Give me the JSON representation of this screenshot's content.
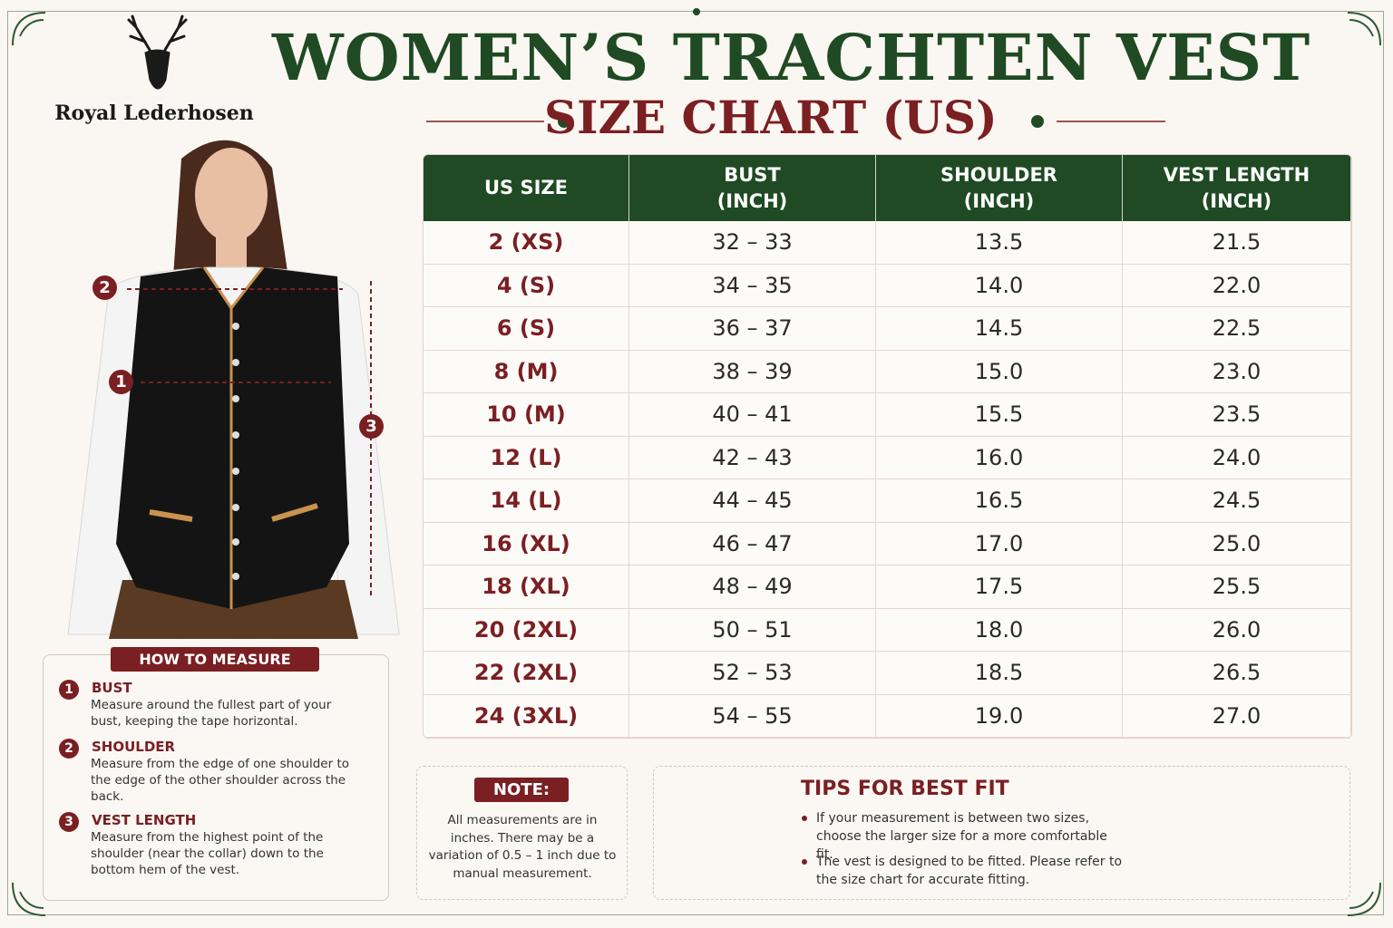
{
  "brand": "Royal Lederhosen",
  "header": {
    "title": "WOMEN’S TRACHTEN VEST",
    "subtitle": "SIZE CHART (US)"
  },
  "table": {
    "columns": [
      [
        "US SIZE"
      ],
      [
        "BUST",
        "(INCH)"
      ],
      [
        "SHOULDER",
        "(INCH)"
      ],
      [
        "VEST LENGTH",
        "(INCH)"
      ]
    ],
    "rows": [
      [
        "2 (XS)",
        "32 – 33",
        "13.5",
        "21.5"
      ],
      [
        "4 (S)",
        "34 – 35",
        "14.0",
        "22.0"
      ],
      [
        "6 (S)",
        "36 – 37",
        "14.5",
        "22.5"
      ],
      [
        "8 (M)",
        "38 – 39",
        "15.0",
        "23.0"
      ],
      [
        "10 (M)",
        "40 – 41",
        "15.5",
        "23.5"
      ],
      [
        "12 (L)",
        "42 – 43",
        "16.0",
        "24.0"
      ],
      [
        "14 (L)",
        "44 – 45",
        "16.5",
        "24.5"
      ],
      [
        "16 (XL)",
        "46 – 47",
        "17.0",
        "25.0"
      ],
      [
        "18 (XL)",
        "48 – 49",
        "17.5",
        "25.5"
      ],
      [
        "20 (2XL)",
        "50 – 51",
        "18.0",
        "26.0"
      ],
      [
        "22 (2XL)",
        "52 – 53",
        "18.5",
        "26.5"
      ],
      [
        "24 (3XL)",
        "54 – 55",
        "19.0",
        "27.0"
      ]
    ]
  },
  "figure_markers": [
    "1",
    "2",
    "3"
  ],
  "how_to_measure": {
    "title": "HOW TO MEASURE",
    "items": [
      {
        "number": "1",
        "label": "BUST",
        "text": "Measure around the fullest part of your bust, keeping the tape horizontal."
      },
      {
        "number": "2",
        "label": "SHOULDER",
        "text": "Measure from the edge of one shoulder to the edge of the other shoulder across the back."
      },
      {
        "number": "3",
        "label": "VEST LENGTH",
        "text": "Measure from the highest point of the shoulder (near the collar) down to the bottom hem of the vest."
      }
    ]
  },
  "note": {
    "title": "NOTE:",
    "text": "All measurements are in inches. There may be a variation of 0.5 – 1 inch due to manual measurement."
  },
  "tips": {
    "title": "TIPS FOR BEST FIT",
    "items": [
      "If your measurement is between two sizes, choose the larger size for a more comfortable fit.",
      "The vest is designed to be fitted. Please refer to the size chart for accurate fitting."
    ]
  }
}
